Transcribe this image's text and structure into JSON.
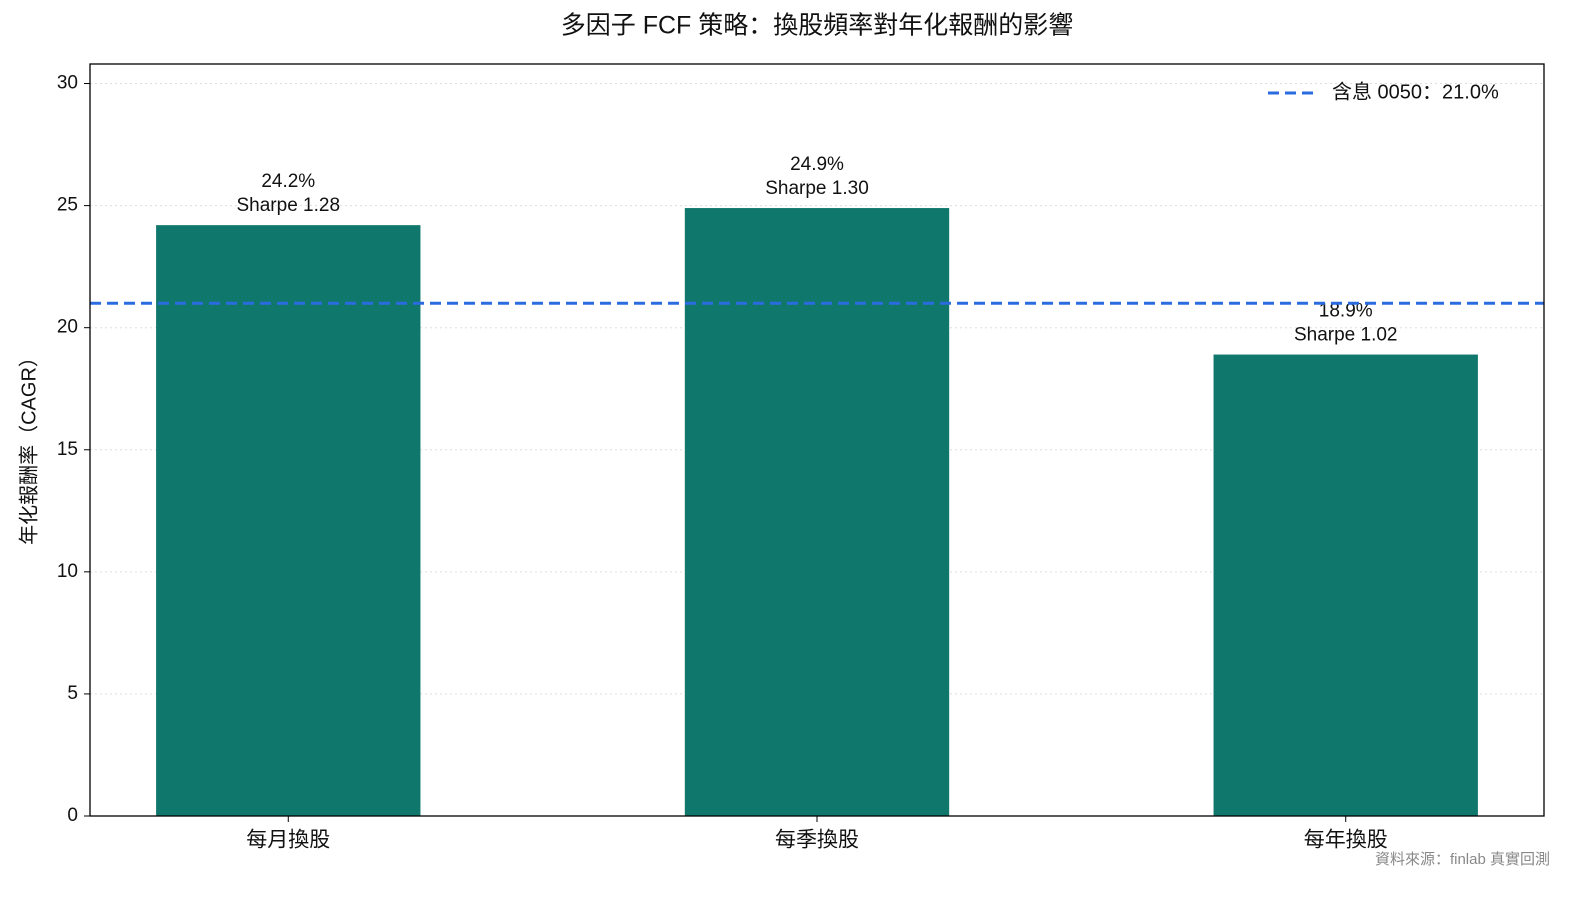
{
  "chart_data": {
    "type": "bar",
    "title": "多因子 FCF 策略：換股頻率對年化報酬的影響",
    "ylabel": "年化報酬率（CAGR）",
    "categories": [
      "每月換股",
      "每季換股",
      "每年換股"
    ],
    "values": [
      24.2,
      24.9,
      18.9
    ],
    "value_labels": [
      "24.2%",
      "24.9%",
      "18.9%"
    ],
    "sharpe_labels": [
      "Sharpe 1.28",
      "Sharpe 1.30",
      "Sharpe 1.02"
    ],
    "color": "#10776c",
    "ylim": [
      0,
      30.8
    ],
    "yticks": [
      0,
      5,
      10,
      15,
      20,
      25,
      30
    ],
    "grid": true,
    "hline": {
      "value": 21.0,
      "label": "含息 0050：21.0%",
      "color": "#2b6be0"
    },
    "legend": "upper right",
    "footnote": "資料來源：finlab 真實回測"
  }
}
